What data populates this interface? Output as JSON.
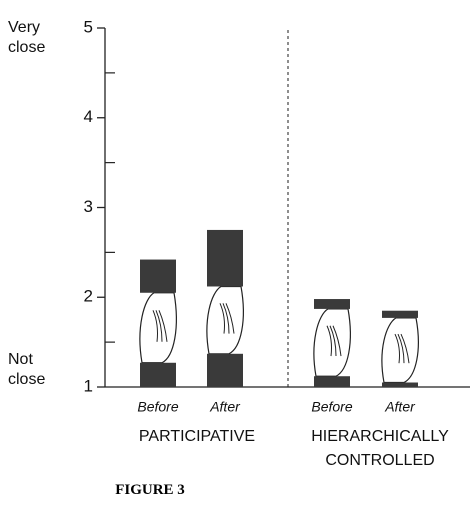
{
  "chart_data": {
    "type": "range-bar",
    "categories": [
      "Before",
      "After",
      "Before",
      "After"
    ],
    "groups": [
      "PARTICIPATIVE",
      "HIERARCHICALLY CONTROLLED"
    ],
    "lower_block": [
      [
        1,
        1.27
      ],
      [
        1,
        1.37
      ],
      [
        1,
        1.12
      ],
      [
        1,
        1.05
      ]
    ],
    "upper_block": [
      [
        2.05,
        2.42
      ],
      [
        2.12,
        2.75
      ],
      [
        1.87,
        1.98
      ],
      [
        1.77,
        1.85
      ]
    ],
    "color": "#3a3a3a",
    "ylim": [
      1,
      5
    ],
    "yticks": [
      1,
      2,
      3,
      4,
      5
    ],
    "minor_yticks": [
      1.5,
      2.5,
      3.5,
      4.5
    ],
    "top_label": [
      "Very",
      "close"
    ],
    "bottom_label": [
      "Not",
      "close"
    ],
    "caption": "FIGURE 3"
  }
}
